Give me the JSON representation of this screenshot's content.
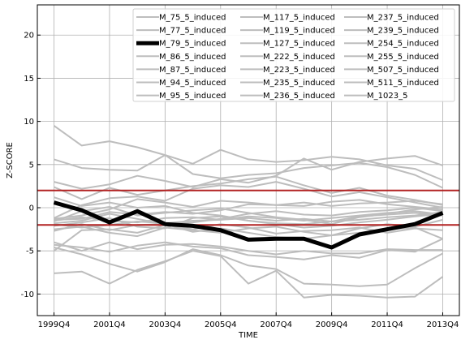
{
  "chart_data": {
    "type": "line",
    "xlabel": "TIME",
    "ylabel": "Z-SCORE",
    "x": [
      "1999Q4",
      "2000Q4",
      "2001Q4",
      "2002Q4",
      "2003Q4",
      "2004Q4",
      "2005Q4",
      "2006Q4",
      "2007Q4",
      "2008Q4",
      "2009Q4",
      "2010Q4",
      "2011Q4",
      "2012Q4",
      "2013Q4"
    ],
    "x_tick_labels": [
      "1999Q4",
      "2001Q4",
      "2003Q4",
      "2005Q4",
      "2007Q4",
      "2009Q4",
      "2011Q4",
      "2013Q4"
    ],
    "ylim": [
      -12.5,
      23.5
    ],
    "y_ticks": [
      -10,
      -5,
      0,
      5,
      10,
      15,
      20
    ],
    "grid": true,
    "legend_placement": "top-right",
    "highlight_series": "M_79_5_induced",
    "thresholds": [
      2,
      -2
    ],
    "colors": {
      "series": "#bdbdbd",
      "highlight": "#000000",
      "threshold": "#b22222"
    },
    "series": [
      {
        "name": "M_75_5_induced",
        "values": [
          9.5,
          7.2,
          7.7,
          7.0,
          6.1,
          5.1,
          6.7,
          5.6,
          5.3,
          5.5,
          5.9,
          5.6,
          4.9,
          4.5,
          3.2
        ]
      },
      {
        "name": "M_77_5_induced",
        "values": [
          5.6,
          4.6,
          4.4,
          4.3,
          6.1,
          3.9,
          3.4,
          3.8,
          4.0,
          4.6,
          4.9,
          5.2,
          4.7,
          3.8,
          2.3
        ]
      },
      {
        "name": "M_79_5_induced",
        "values": [
          0.6,
          -0.3,
          -1.7,
          -0.4,
          -1.9,
          -2.1,
          -2.6,
          -3.7,
          -3.6,
          -3.6,
          -4.6,
          -3.1,
          -2.5,
          -1.9,
          -0.6
        ]
      },
      {
        "name": "M_86_5_induced",
        "values": [
          3.0,
          2.2,
          2.7,
          3.7,
          3.1,
          2.4,
          3.3,
          2.9,
          3.7,
          5.7,
          4.4,
          5.3,
          5.7,
          6.0,
          4.9
        ]
      },
      {
        "name": "M_87_5_induced",
        "values": [
          2.4,
          1.0,
          2.3,
          1.5,
          2.0,
          2.5,
          2.8,
          3.3,
          3.6,
          2.6,
          1.7,
          2.3,
          1.4,
          0.9,
          0.3
        ]
      },
      {
        "name": "M_94_5_induced",
        "values": [
          -1.2,
          0.3,
          1.1,
          1.3,
          0.8,
          2.2,
          2.6,
          2.4,
          3.0,
          2.2,
          1.3,
          1.8,
          1.2,
          0.6,
          0.0
        ]
      },
      {
        "name": "M_95_5_induced",
        "values": [
          -1.3,
          -0.9,
          -0.2,
          1.0,
          0.6,
          0.1,
          0.8,
          0.6,
          0.3,
          0.2,
          0.7,
          0.9,
          0.4,
          0.1,
          -0.2
        ]
      },
      {
        "name": "M_117_5_induced",
        "values": [
          -1.6,
          -0.4,
          0.1,
          -0.9,
          -0.6,
          -0.3,
          -0.1,
          -0.6,
          -1.1,
          -1.4,
          -1.9,
          -1.1,
          -0.7,
          -0.2,
          0.1
        ]
      },
      {
        "name": "M_119_5_induced",
        "values": [
          -1.8,
          -1.5,
          -0.7,
          -1.3,
          -1.9,
          -1.7,
          -1.3,
          -0.7,
          -0.4,
          -0.8,
          -0.9,
          -0.5,
          -0.3,
          0.0,
          -0.4
        ]
      },
      {
        "name": "M_127_5_induced",
        "values": [
          -2.1,
          -1.7,
          -1.2,
          -2.2,
          -2.4,
          -1.2,
          -1.0,
          -1.5,
          -1.9,
          -2.3,
          -2.1,
          -1.7,
          -1.4,
          -1.0,
          -0.7
        ]
      },
      {
        "name": "M_222_5_induced",
        "values": [
          -2.5,
          -2.2,
          -2.9,
          -3.3,
          -2.3,
          -2.6,
          -2.9,
          -2.4,
          -2.2,
          -2.8,
          -3.2,
          -2.4,
          -1.9,
          -2.2,
          -1.4
        ]
      },
      {
        "name": "M_223_5_induced",
        "values": [
          -2.7,
          -1.9,
          -2.6,
          -2.0,
          -1.9,
          -2.8,
          -2.4,
          -2.9,
          -3.4,
          -3.6,
          -3.2,
          -2.9,
          -2.5,
          -2.3,
          -3.6
        ]
      },
      {
        "name": "M_235_5_induced",
        "values": [
          -4.0,
          -5.0,
          -4.0,
          -4.8,
          -4.3,
          -4.2,
          -4.5,
          -5.0,
          -5.4,
          -5.0,
          -5.3,
          -5.3,
          -4.8,
          -4.9,
          -4.9
        ]
      },
      {
        "name": "M_236_5_induced",
        "values": [
          -4.6,
          -5.4,
          -6.5,
          -7.4,
          -6.3,
          -4.8,
          -5.5,
          -6.7,
          -7.1,
          -8.8,
          -8.9,
          -9.1,
          -8.9,
          -7.0,
          -5.3
        ]
      },
      {
        "name": "M_237_5_induced",
        "values": [
          -5.0,
          -2.6,
          -2.5,
          -2.9,
          -2.0,
          -2.5,
          -1.9,
          -2.3,
          -3.0,
          -2.7,
          -2.6,
          -2.3,
          -2.9,
          -2.4,
          -2.6
        ]
      },
      {
        "name": "M_239_5_induced",
        "values": [
          -7.6,
          -7.4,
          -8.8,
          -7.2,
          -6.2,
          -5.0,
          -5.6,
          -8.8,
          -7.3,
          -10.4,
          -10.1,
          -10.2,
          -10.4,
          -10.3,
          -8.0
        ]
      },
      {
        "name": "M_254_5_induced",
        "values": [
          -1.4,
          -1.3,
          -0.5,
          -0.8,
          -0.5,
          -0.7,
          -0.3,
          0.4,
          0.3,
          0.6,
          0.2,
          0.5,
          0.6,
          0.8,
          0.4
        ]
      },
      {
        "name": "M_255_5_induced",
        "values": [
          -1.5,
          -1.1,
          -1.5,
          -1.7,
          -1.2,
          -1.1,
          -1.4,
          -1.2,
          -1.5,
          -1.3,
          -1.6,
          -1.0,
          -0.8,
          -0.6,
          -0.9
        ]
      },
      {
        "name": "M_507_5_induced",
        "values": [
          -4.3,
          -4.6,
          -5.1,
          -4.4,
          -4.0,
          -4.5,
          -4.7,
          -5.5,
          -5.7,
          -6.0,
          -5.5,
          -5.8,
          -4.9,
          -5.1,
          -3.6
        ]
      },
      {
        "name": "M_511_5_induced",
        "values": [
          1.2,
          0.2,
          0.6,
          0.0,
          0.2,
          -0.6,
          -0.9,
          -1.5,
          -1.8,
          -1.9,
          -1.6,
          -1.4,
          -1.1,
          -0.9,
          -0.5
        ]
      },
      {
        "name": "M_1023_5",
        "values": [
          -1.9,
          -2.3,
          -2.0,
          -1.6,
          -1.8,
          -1.5,
          -1.4,
          -1.0,
          -1.2,
          -1.5,
          -1.2,
          -0.9,
          -0.6,
          -0.4,
          -0.8
        ]
      }
    ]
  }
}
